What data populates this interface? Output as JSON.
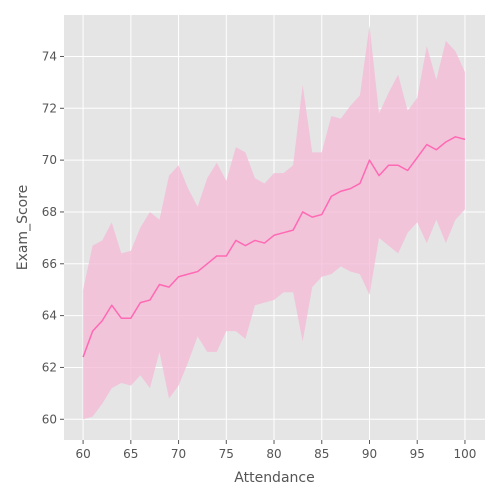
{
  "chart_data": {
    "type": "line",
    "xlabel": "Attendance",
    "ylabel": "Exam_Score",
    "xlim": [
      58,
      102.1
    ],
    "ylim": [
      59.2,
      75.6
    ],
    "grid": true,
    "x_ticks": [
      60,
      65,
      70,
      75,
      80,
      85,
      90,
      95,
      100
    ],
    "y_ticks": [
      60,
      62,
      64,
      66,
      68,
      70,
      72,
      74
    ],
    "line_color": "#ff69b4",
    "band_color": "#f4b8d6",
    "background_color": "#e5e5e5",
    "series": [
      {
        "x": [
          60,
          61,
          62,
          63,
          64,
          65,
          66,
          67,
          68,
          69,
          70,
          71,
          72,
          73,
          74,
          75,
          76,
          77,
          78,
          79,
          80,
          81,
          82,
          83,
          84,
          85,
          86,
          87,
          88,
          89,
          90,
          91,
          92,
          93,
          94,
          95,
          96,
          97,
          98,
          99,
          100
        ],
        "y": [
          62.4,
          63.4,
          63.8,
          64.4,
          63.9,
          63.9,
          64.5,
          64.6,
          65.2,
          65.1,
          65.5,
          65.6,
          65.7,
          66.0,
          66.3,
          66.3,
          66.9,
          66.7,
          66.9,
          66.8,
          67.1,
          67.2,
          67.3,
          68.0,
          67.8,
          67.9,
          68.6,
          68.8,
          68.9,
          69.1,
          70.0,
          69.4,
          69.8,
          69.8,
          69.6,
          70.1,
          70.6,
          70.4,
          70.7,
          70.9,
          70.8
        ],
        "lower": [
          60.0,
          60.1,
          60.6,
          61.2,
          61.4,
          61.3,
          61.7,
          61.2,
          62.6,
          60.8,
          61.3,
          62.2,
          63.2,
          62.6,
          62.6,
          63.4,
          63.4,
          63.1,
          64.4,
          64.5,
          64.6,
          64.9,
          64.9,
          63.0,
          65.1,
          65.5,
          65.6,
          65.9,
          65.7,
          65.6,
          64.8,
          67.0,
          66.7,
          66.4,
          67.2,
          67.6,
          66.8,
          67.7,
          66.8,
          67.7,
          68.1
        ],
        "upper": [
          65.0,
          66.7,
          66.9,
          67.6,
          66.4,
          66.5,
          67.4,
          68.0,
          67.7,
          69.4,
          69.8,
          68.9,
          68.2,
          69.3,
          69.9,
          69.2,
          70.5,
          70.3,
          69.3,
          69.1,
          69.5,
          69.5,
          69.8,
          72.9,
          70.3,
          70.3,
          71.7,
          71.6,
          72.1,
          72.5,
          75.2,
          71.8,
          72.6,
          73.3,
          71.9,
          72.4,
          74.4,
          73.1,
          74.6,
          74.2,
          73.4
        ]
      }
    ]
  }
}
